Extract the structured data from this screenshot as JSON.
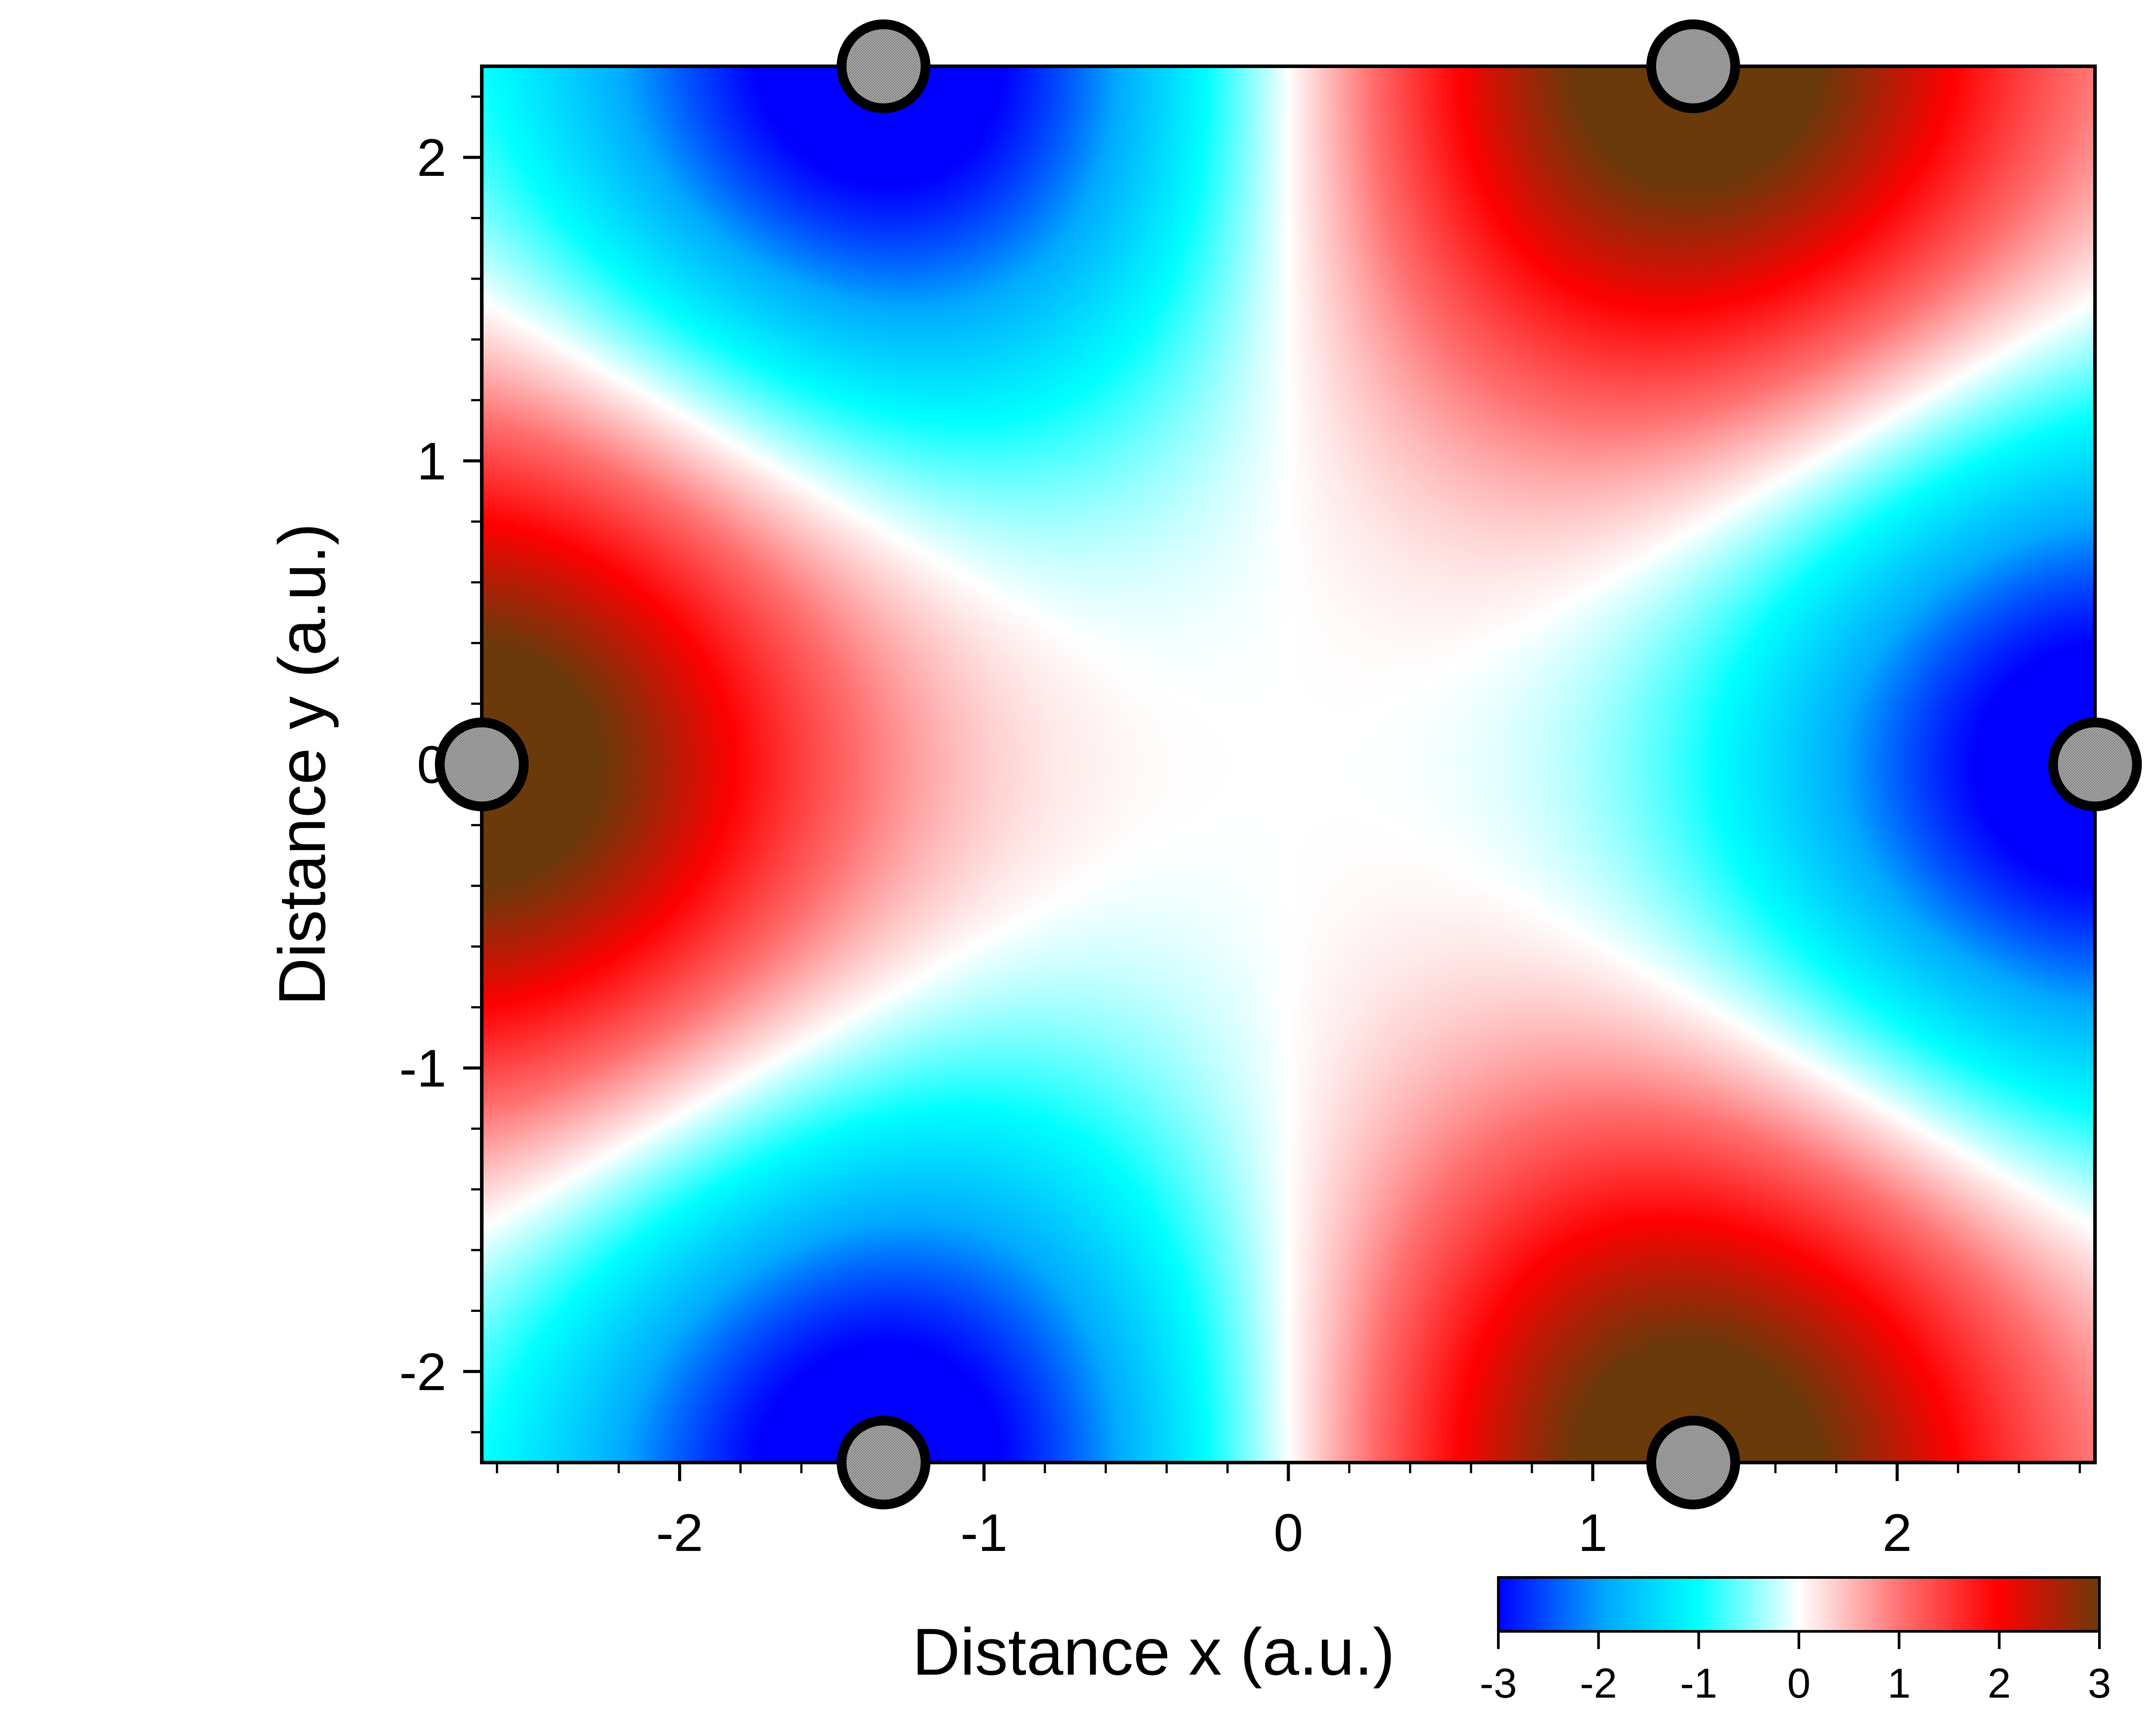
{
  "chart_data": {
    "type": "heatmap",
    "title": "",
    "xlabel": "Distance x (a.u.)",
    "ylabel": "Distance y (a.u.)",
    "xlim": [
      -2.65,
      2.65
    ],
    "ylim": [
      -2.3,
      2.3
    ],
    "x_ticks": [
      -2,
      -1,
      0,
      1,
      2
    ],
    "y_ticks": [
      -2,
      -1,
      0,
      1,
      2
    ],
    "x_tick_labels": [
      "-2",
      "-1",
      "0",
      "1",
      "2"
    ],
    "y_tick_labels": [
      "-2",
      "-1",
      "0",
      "1",
      "2"
    ],
    "colorbar": {
      "range": [
        -3,
        3
      ],
      "ticks": [
        -3,
        -2,
        -1,
        0,
        1,
        2,
        3
      ],
      "tick_labels": [
        "-3",
        "-2",
        "-1",
        "0",
        "1",
        "2",
        "3"
      ],
      "colors": [
        "#0000ff",
        "#00ffff",
        "#ffffff",
        "#ff0000",
        "#6b3a0a"
      ]
    },
    "field_extrema": [
      {
        "x": -1.33,
        "y": 2.3,
        "value": -3
      },
      {
        "x": 1.33,
        "y": 2.3,
        "value": 3
      },
      {
        "x": -2.65,
        "y": 0,
        "value": 3
      },
      {
        "x": 2.65,
        "y": 0,
        "value": -3
      },
      {
        "x": -1.33,
        "y": -2.3,
        "value": -3
      },
      {
        "x": 1.33,
        "y": -2.3,
        "value": 3
      }
    ],
    "atoms": [
      {
        "x": -1.33,
        "y": 2.3
      },
      {
        "x": 1.33,
        "y": 2.3
      },
      {
        "x": -2.65,
        "y": 0
      },
      {
        "x": 2.65,
        "y": 0
      },
      {
        "x": -1.33,
        "y": -2.3
      },
      {
        "x": 1.33,
        "y": -2.3
      }
    ],
    "atom_color": "#a0a0a0",
    "grid": false,
    "legend": "colorbar bottom-right"
  }
}
